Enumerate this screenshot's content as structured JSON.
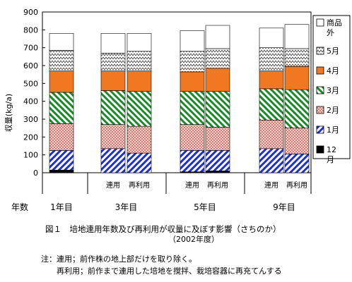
{
  "chart_data": {
    "type": "stacked-bar",
    "ylabel": "収量(kg/a)",
    "xlabel": "年数",
    "ylim": [
      0,
      900
    ],
    "yticks": [
      0,
      100,
      200,
      300,
      400,
      500,
      600,
      700,
      800,
      900
    ],
    "grid": false,
    "legend_position": "right",
    "groups": [
      {
        "label": "1年目",
        "bars": [
          0
        ]
      },
      {
        "label": "3年目",
        "bars": [
          1,
          2
        ]
      },
      {
        "label": "5年目",
        "bars": [
          3,
          4
        ]
      },
      {
        "label": "9年目",
        "bars": [
          5,
          6
        ]
      }
    ],
    "bar_labels": [
      "",
      "連用",
      "再利用",
      "連用",
      "再利用",
      "連用",
      "再利用"
    ],
    "series": [
      {
        "name": "12月",
        "color": "#000000",
        "pattern": "solid",
        "values": [
          15,
          0,
          0,
          5,
          10,
          0,
          0
        ]
      },
      {
        "name": "1月",
        "color": "#1f2fd0",
        "pattern": "diag-blue",
        "values": [
          110,
          135,
          110,
          120,
          115,
          135,
          105
        ]
      },
      {
        "name": "2月",
        "color": "#d06050",
        "pattern": "dots-red",
        "values": [
          150,
          135,
          150,
          145,
          130,
          160,
          145
        ]
      },
      {
        "name": "3月",
        "color": "#1a8a2a",
        "pattern": "diag-green",
        "values": [
          175,
          190,
          195,
          185,
          200,
          175,
          215
        ]
      },
      {
        "name": "4月",
        "color": "#f07820",
        "pattern": "solid",
        "values": [
          120,
          110,
          115,
          110,
          130,
          100,
          130
        ]
      },
      {
        "name": "5月",
        "color": "#555555",
        "pattern": "zigzag",
        "values": [
          115,
          100,
          110,
          115,
          110,
          130,
          100
        ]
      },
      {
        "name": "商品外",
        "color": "#ffffff",
        "pattern": "solid",
        "values": [
          95,
          110,
          100,
          115,
          130,
          110,
          135
        ]
      }
    ],
    "caption": {
      "title": "図１　培地連用年数及び再利用が収量に及ぼす影響（さちのか）",
      "year": "（2002年度）"
    },
    "notes": {
      "line1": "注：連用；前作株の地上部だけを取り除く。",
      "line2": "再利用；前作まで連用した培地を撹拌、栽培容器に再充てんする"
    }
  }
}
